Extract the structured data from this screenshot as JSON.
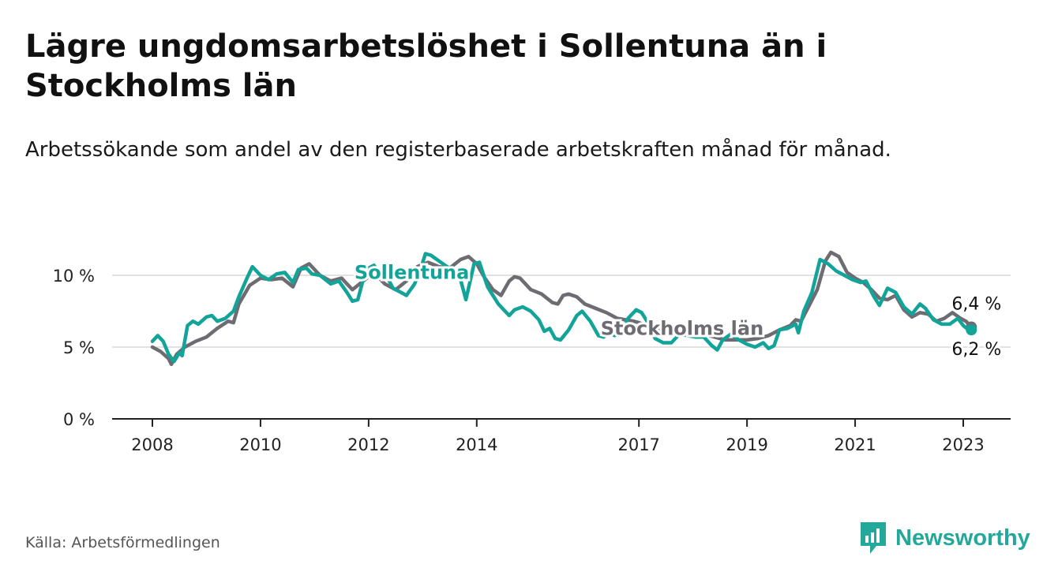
{
  "title": "Lägre ungdomsarbetslöshet i Sollentuna än i Stockholms län",
  "subtitle": "Arbetssökande som andel av den registerbaserade arbetskraften månad för månad.",
  "source": "Källa: Arbetsförmedlingen",
  "brand": {
    "name": "Newsworthy",
    "icon": "newsworthy-logo-icon"
  },
  "colors": {
    "sollentuna": "#12a499",
    "stockholm": "#6e6c72",
    "grid": "#d9d9d9",
    "axis": "#222222"
  },
  "chart_data": {
    "type": "line",
    "title": "Lägre ungdomsarbetslöshet i Sollentuna än i Stockholms län",
    "xlabel": "",
    "ylabel": "",
    "xlim": [
      2008.0,
      2023.9
    ],
    "ylim": [
      0,
      11
    ],
    "x_ticks": [
      2008,
      2010,
      2012,
      2014,
      2017,
      2019,
      2021,
      2023
    ],
    "x_tick_labels": [
      "2008",
      "2010",
      "2012",
      "2014",
      "2017",
      "2019",
      "2021",
      "2023"
    ],
    "y_ticks": [
      0,
      5,
      10
    ],
    "y_tick_labels": [
      "0 %",
      "5 %",
      "10 %"
    ],
    "grid": true,
    "series": [
      {
        "name": "Stockholms län",
        "color": "#6e6c72",
        "end_label": "6,4 %",
        "points": [
          [
            2008.0,
            5.0
          ],
          [
            2008.15,
            4.7
          ],
          [
            2008.3,
            4.2
          ],
          [
            2008.35,
            3.8
          ],
          [
            2008.45,
            4.5
          ],
          [
            2008.6,
            5.0
          ],
          [
            2008.8,
            5.4
          ],
          [
            2009.0,
            5.7
          ],
          [
            2009.2,
            6.3
          ],
          [
            2009.4,
            6.8
          ],
          [
            2009.5,
            6.7
          ],
          [
            2009.6,
            8.0
          ],
          [
            2009.8,
            9.3
          ],
          [
            2010.0,
            9.8
          ],
          [
            2010.2,
            9.7
          ],
          [
            2010.4,
            9.8
          ],
          [
            2010.6,
            9.2
          ],
          [
            2010.75,
            10.5
          ],
          [
            2010.9,
            10.8
          ],
          [
            2011.1,
            10.0
          ],
          [
            2011.3,
            9.6
          ],
          [
            2011.5,
            9.8
          ],
          [
            2011.7,
            9.0
          ],
          [
            2011.9,
            9.6
          ],
          [
            2012.1,
            10.2
          ],
          [
            2012.3,
            9.4
          ],
          [
            2012.5,
            9.0
          ],
          [
            2012.7,
            9.6
          ],
          [
            2012.9,
            10.6
          ],
          [
            2013.1,
            10.9
          ],
          [
            2013.3,
            10.6
          ],
          [
            2013.5,
            10.5
          ],
          [
            2013.7,
            11.1
          ],
          [
            2013.85,
            11.3
          ],
          [
            2014.0,
            10.8
          ],
          [
            2014.15,
            9.8
          ],
          [
            2014.3,
            9.0
          ],
          [
            2014.45,
            8.6
          ],
          [
            2014.6,
            9.6
          ],
          [
            2014.7,
            9.9
          ],
          [
            2014.8,
            9.8
          ],
          [
            2015.0,
            9.0
          ],
          [
            2015.2,
            8.7
          ],
          [
            2015.4,
            8.1
          ],
          [
            2015.5,
            8.0
          ],
          [
            2015.6,
            8.6
          ],
          [
            2015.7,
            8.7
          ],
          [
            2015.85,
            8.5
          ],
          [
            2016.0,
            8.0
          ],
          [
            2016.2,
            7.7
          ],
          [
            2016.4,
            7.4
          ],
          [
            2016.6,
            7.0
          ],
          [
            2016.75,
            6.9
          ],
          [
            2016.9,
            6.8
          ],
          [
            2017.0,
            6.7
          ],
          [
            2017.2,
            6.4
          ],
          [
            2017.4,
            6.2
          ],
          [
            2017.6,
            6.1
          ],
          [
            2017.8,
            6.1
          ],
          [
            2018.0,
            6.0
          ],
          [
            2018.2,
            5.9
          ],
          [
            2018.4,
            5.7
          ],
          [
            2018.6,
            5.5
          ],
          [
            2018.8,
            5.5
          ],
          [
            2019.0,
            5.5
          ],
          [
            2019.2,
            5.6
          ],
          [
            2019.4,
            5.8
          ],
          [
            2019.6,
            6.2
          ],
          [
            2019.8,
            6.5
          ],
          [
            2019.9,
            6.9
          ],
          [
            2020.0,
            6.8
          ],
          [
            2020.15,
            7.9
          ],
          [
            2020.3,
            9.0
          ],
          [
            2020.45,
            11.0
          ],
          [
            2020.55,
            11.6
          ],
          [
            2020.7,
            11.3
          ],
          [
            2020.85,
            10.2
          ],
          [
            2021.0,
            9.8
          ],
          [
            2021.15,
            9.5
          ],
          [
            2021.3,
            9.0
          ],
          [
            2021.45,
            8.4
          ],
          [
            2021.6,
            8.3
          ],
          [
            2021.75,
            8.6
          ],
          [
            2021.9,
            7.6
          ],
          [
            2022.05,
            7.1
          ],
          [
            2022.2,
            7.4
          ],
          [
            2022.35,
            7.3
          ],
          [
            2022.5,
            6.8
          ],
          [
            2022.65,
            7.0
          ],
          [
            2022.8,
            7.4
          ],
          [
            2022.95,
            7.0
          ],
          [
            2023.05,
            6.8
          ],
          [
            2023.15,
            6.4
          ]
        ]
      },
      {
        "name": "Sollentuna",
        "color": "#12a499",
        "end_label": "6,2 %",
        "points": [
          [
            2008.0,
            5.4
          ],
          [
            2008.1,
            5.8
          ],
          [
            2008.2,
            5.4
          ],
          [
            2008.3,
            4.5
          ],
          [
            2008.4,
            4.0
          ],
          [
            2008.5,
            4.6
          ],
          [
            2008.55,
            4.4
          ],
          [
            2008.65,
            6.5
          ],
          [
            2008.75,
            6.8
          ],
          [
            2008.85,
            6.6
          ],
          [
            2009.0,
            7.1
          ],
          [
            2009.1,
            7.2
          ],
          [
            2009.2,
            6.8
          ],
          [
            2009.35,
            7.0
          ],
          [
            2009.5,
            7.5
          ],
          [
            2009.6,
            8.5
          ],
          [
            2009.75,
            9.8
          ],
          [
            2009.85,
            10.6
          ],
          [
            2010.0,
            10.0
          ],
          [
            2010.15,
            9.7
          ],
          [
            2010.3,
            10.1
          ],
          [
            2010.45,
            10.2
          ],
          [
            2010.6,
            9.5
          ],
          [
            2010.7,
            10.4
          ],
          [
            2010.85,
            10.5
          ],
          [
            2010.95,
            10.1
          ],
          [
            2011.1,
            10.0
          ],
          [
            2011.3,
            9.4
          ],
          [
            2011.45,
            9.6
          ],
          [
            2011.6,
            8.8
          ],
          [
            2011.7,
            8.2
          ],
          [
            2011.8,
            8.3
          ],
          [
            2011.95,
            10.4
          ],
          [
            2012.1,
            10.7
          ],
          [
            2012.2,
            10.1
          ],
          [
            2012.3,
            10.2
          ],
          [
            2012.45,
            9.1
          ],
          [
            2012.6,
            8.8
          ],
          [
            2012.7,
            8.6
          ],
          [
            2012.85,
            9.4
          ],
          [
            2012.95,
            10.3
          ],
          [
            2013.05,
            11.5
          ],
          [
            2013.15,
            11.4
          ],
          [
            2013.3,
            11.0
          ],
          [
            2013.45,
            10.6
          ],
          [
            2013.6,
            10.4
          ],
          [
            2013.7,
            9.7
          ],
          [
            2013.8,
            8.3
          ],
          [
            2013.95,
            10.8
          ],
          [
            2014.05,
            10.9
          ],
          [
            2014.2,
            9.2
          ],
          [
            2014.3,
            8.6
          ],
          [
            2014.4,
            8.0
          ],
          [
            2014.5,
            7.6
          ],
          [
            2014.6,
            7.2
          ],
          [
            2014.7,
            7.6
          ],
          [
            2014.85,
            7.8
          ],
          [
            2015.0,
            7.5
          ],
          [
            2015.15,
            6.9
          ],
          [
            2015.25,
            6.1
          ],
          [
            2015.35,
            6.3
          ],
          [
            2015.45,
            5.6
          ],
          [
            2015.55,
            5.5
          ],
          [
            2015.7,
            6.2
          ],
          [
            2015.85,
            7.2
          ],
          [
            2015.95,
            7.5
          ],
          [
            2016.1,
            6.8
          ],
          [
            2016.25,
            5.8
          ],
          [
            2016.35,
            5.7
          ],
          [
            2016.45,
            6.0
          ],
          [
            2016.55,
            5.8
          ],
          [
            2016.65,
            6.0
          ],
          [
            2016.8,
            7.0
          ],
          [
            2016.95,
            7.6
          ],
          [
            2017.05,
            7.4
          ],
          [
            2017.15,
            6.8
          ],
          [
            2017.3,
            5.6
          ],
          [
            2017.45,
            5.3
          ],
          [
            2017.6,
            5.3
          ],
          [
            2017.75,
            5.9
          ],
          [
            2017.9,
            5.8
          ],
          [
            2018.05,
            5.7
          ],
          [
            2018.2,
            5.7
          ],
          [
            2018.35,
            5.1
          ],
          [
            2018.45,
            4.8
          ],
          [
            2018.55,
            5.5
          ],
          [
            2018.7,
            5.9
          ],
          [
            2018.85,
            5.5
          ],
          [
            2019.0,
            5.2
          ],
          [
            2019.15,
            5.0
          ],
          [
            2019.3,
            5.3
          ],
          [
            2019.4,
            4.9
          ],
          [
            2019.5,
            5.1
          ],
          [
            2019.6,
            6.2
          ],
          [
            2019.75,
            6.3
          ],
          [
            2019.9,
            6.6
          ],
          [
            2019.95,
            6.0
          ],
          [
            2020.05,
            7.5
          ],
          [
            2020.2,
            8.8
          ],
          [
            2020.35,
            11.1
          ],
          [
            2020.5,
            10.8
          ],
          [
            2020.65,
            10.3
          ],
          [
            2020.8,
            10.0
          ],
          [
            2020.95,
            9.7
          ],
          [
            2021.1,
            9.5
          ],
          [
            2021.2,
            9.6
          ],
          [
            2021.35,
            8.5
          ],
          [
            2021.45,
            7.9
          ],
          [
            2021.6,
            9.1
          ],
          [
            2021.75,
            8.8
          ],
          [
            2021.9,
            7.8
          ],
          [
            2022.05,
            7.3
          ],
          [
            2022.2,
            8.0
          ],
          [
            2022.3,
            7.7
          ],
          [
            2022.45,
            6.9
          ],
          [
            2022.6,
            6.6
          ],
          [
            2022.75,
            6.6
          ],
          [
            2022.9,
            7.0
          ],
          [
            2023.0,
            6.5
          ],
          [
            2023.1,
            6.2
          ],
          [
            2023.15,
            6.2
          ]
        ]
      }
    ],
    "annotations": [
      {
        "text": "Sollentuna",
        "series": "Sollentuna",
        "x": 2012.8,
        "y": 10.2
      },
      {
        "text": "Stockholms län",
        "series": "Stockholms län",
        "x": 2017.8,
        "y": 6.3
      }
    ]
  }
}
